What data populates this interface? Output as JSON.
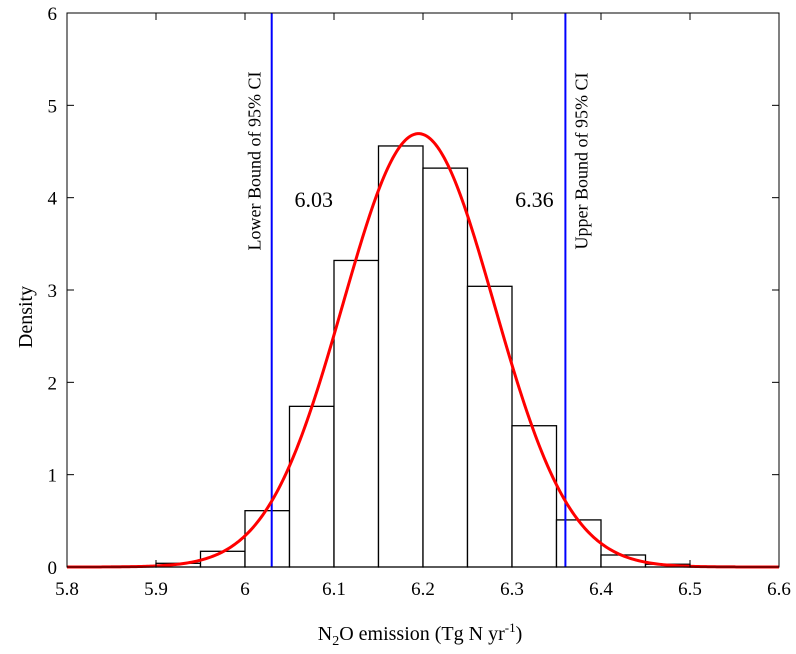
{
  "chart_data": {
    "type": "bar",
    "title": "",
    "xlabel_parts": {
      "a": "N",
      "b": "2",
      "c": "O emission (Tg N yr",
      "d": "-1",
      "e": ")"
    },
    "ylabel": "Density",
    "xlim": [
      5.8,
      6.6
    ],
    "ylim": [
      0,
      6
    ],
    "xticks": [
      "5.8",
      "5.9",
      "6",
      "6.1",
      "6.2",
      "6.3",
      "6.4",
      "6.5",
      "6.6"
    ],
    "yticks": [
      "0",
      "1",
      "2",
      "3",
      "4",
      "5",
      "6"
    ],
    "bin_width": 0.05,
    "histogram": [
      {
        "x0": 5.85,
        "value": 0.01
      },
      {
        "x0": 5.9,
        "value": 0.04
      },
      {
        "x0": 5.95,
        "value": 0.17
      },
      {
        "x0": 6.0,
        "value": 0.61
      },
      {
        "x0": 6.05,
        "value": 1.74
      },
      {
        "x0": 6.1,
        "value": 3.32
      },
      {
        "x0": 6.15,
        "value": 4.56
      },
      {
        "x0": 6.2,
        "value": 4.32
      },
      {
        "x0": 6.25,
        "value": 3.04
      },
      {
        "x0": 6.3,
        "value": 1.53
      },
      {
        "x0": 6.35,
        "value": 0.51
      },
      {
        "x0": 6.4,
        "value": 0.13
      },
      {
        "x0": 6.45,
        "value": 0.03
      },
      {
        "x0": 6.5,
        "value": 0.01
      }
    ],
    "fit_curve": {
      "type": "normal",
      "mean": 6.195,
      "sd": 0.085
    },
    "ci_lines": [
      {
        "x": 6.03,
        "label": "Lower Bound of 95% CI",
        "value_label": "6.03"
      },
      {
        "x": 6.36,
        "label": "Upper Bound of 95% CI",
        "value_label": "6.36"
      }
    ],
    "colors": {
      "bars": "#000000",
      "curve": "#ff0000",
      "ci": "#0000ff"
    },
    "grid": false
  }
}
